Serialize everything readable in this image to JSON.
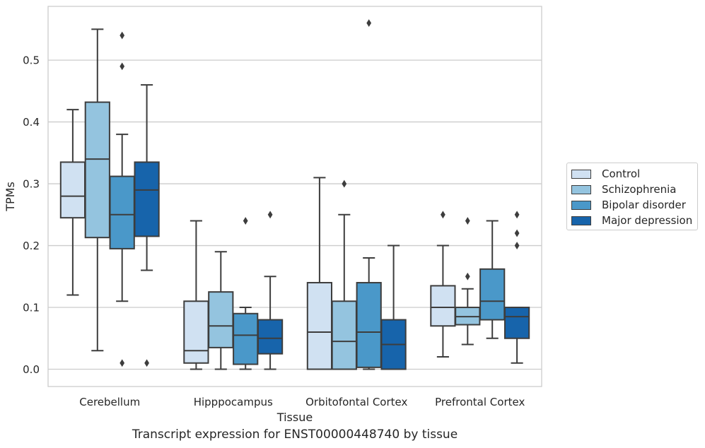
{
  "caption": "Transcript expression for ENST00000448740 by tissue",
  "chart_data": {
    "type": "box",
    "title": "",
    "xlabel": "Tissue",
    "ylabel": "TPMs",
    "ylim": [
      -0.028,
      0.587
    ],
    "yticks": [
      "0.0",
      "0.1",
      "0.2",
      "0.3",
      "0.4",
      "0.5"
    ],
    "grid": "horizontal",
    "legend_position": "center-right",
    "categories": [
      "Cerebellum",
      "Hipppocampus",
      "Orbitofontal Cortex",
      "Prefrontal Cortex"
    ],
    "series": [
      {
        "name": "Control",
        "color": "#d0e1f2",
        "boxes": [
          {
            "whisker_low": 0.12,
            "q1": 0.245,
            "median": 0.28,
            "q3": 0.335,
            "whisker_high": 0.42,
            "outliers": []
          },
          {
            "whisker_low": 0.0,
            "q1": 0.01,
            "median": 0.03,
            "q3": 0.11,
            "whisker_high": 0.24,
            "outliers": []
          },
          {
            "whisker_low": 0.0,
            "q1": 0.0,
            "median": 0.06,
            "q3": 0.14,
            "whisker_high": 0.31,
            "outliers": []
          },
          {
            "whisker_low": 0.02,
            "q1": 0.07,
            "median": 0.1,
            "q3": 0.135,
            "whisker_high": 0.2,
            "outliers": [
              0.25
            ]
          }
        ]
      },
      {
        "name": "Schizophrenia",
        "color": "#94c4df",
        "boxes": [
          {
            "whisker_low": 0.03,
            "q1": 0.213,
            "median": 0.34,
            "q3": 0.432,
            "whisker_high": 0.55,
            "outliers": []
          },
          {
            "whisker_low": 0.0,
            "q1": 0.035,
            "median": 0.07,
            "q3": 0.125,
            "whisker_high": 0.19,
            "outliers": []
          },
          {
            "whisker_low": 0.0,
            "q1": 0.0,
            "median": 0.045,
            "q3": 0.11,
            "whisker_high": 0.25,
            "outliers": [
              0.3
            ]
          },
          {
            "whisker_low": 0.04,
            "q1": 0.072,
            "median": 0.085,
            "q3": 0.1,
            "whisker_high": 0.13,
            "outliers": [
              0.15,
              0.24
            ]
          }
        ]
      },
      {
        "name": "Bipolar disorder",
        "color": "#4a98c9",
        "boxes": [
          {
            "whisker_low": 0.11,
            "q1": 0.195,
            "median": 0.25,
            "q3": 0.312,
            "whisker_high": 0.38,
            "outliers": [
              0.01,
              0.49,
              0.54
            ]
          },
          {
            "whisker_low": 0.0,
            "q1": 0.008,
            "median": 0.055,
            "q3": 0.09,
            "whisker_high": 0.1,
            "outliers": [
              0.24
            ]
          },
          {
            "whisker_low": 0.0,
            "q1": 0.003,
            "median": 0.06,
            "q3": 0.14,
            "whisker_high": 0.18,
            "outliers": [
              0.56
            ]
          },
          {
            "whisker_low": 0.05,
            "q1": 0.08,
            "median": 0.11,
            "q3": 0.162,
            "whisker_high": 0.24,
            "outliers": []
          }
        ]
      },
      {
        "name": "Major depression",
        "color": "#1764ab",
        "boxes": [
          {
            "whisker_low": 0.16,
            "q1": 0.215,
            "median": 0.29,
            "q3": 0.335,
            "whisker_high": 0.46,
            "outliers": [
              0.01
            ]
          },
          {
            "whisker_low": 0.0,
            "q1": 0.025,
            "median": 0.05,
            "q3": 0.08,
            "whisker_high": 0.15,
            "outliers": [
              0.25
            ]
          },
          {
            "whisker_low": 0.0,
            "q1": 0.0,
            "median": 0.04,
            "q3": 0.08,
            "whisker_high": 0.2,
            "outliers": []
          },
          {
            "whisker_low": 0.01,
            "q1": 0.05,
            "median": 0.085,
            "q3": 0.1,
            "whisker_high": 0.1,
            "outliers": [
              0.2,
              0.22,
              0.25
            ]
          }
        ]
      }
    ]
  }
}
